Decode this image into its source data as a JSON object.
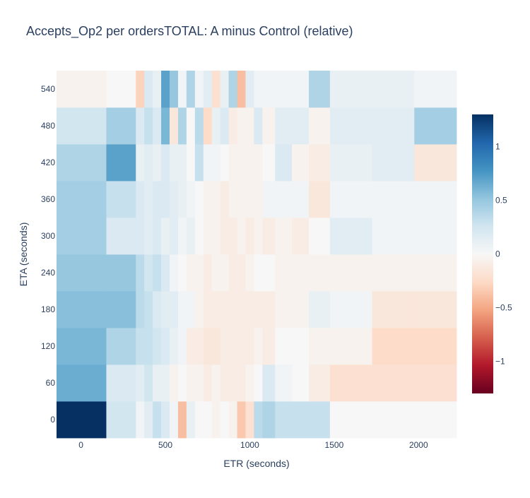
{
  "chart_data": {
    "type": "heatmap",
    "title": "Accepts_Op2 per ordersTOTAL: A minus Control (relative)",
    "xlabel": "ETR (seconds)",
    "ylabel": "ETA (seconds)",
    "x_ticks": [
      0,
      500,
      1000,
      1500,
      2000
    ],
    "y_ticks": [
      0,
      60,
      120,
      180,
      240,
      300,
      360,
      420,
      480,
      540
    ],
    "x_edges": [
      -145,
      150,
      325,
      375,
      425,
      475,
      525,
      575,
      625,
      675,
      725,
      775,
      825,
      875,
      925,
      975,
      1025,
      1075,
      1150,
      1250,
      1350,
      1475,
      1725,
      1975,
      2225
    ],
    "y_edges": [
      -30,
      30,
      90,
      150,
      210,
      270,
      330,
      390,
      450,
      510,
      570
    ],
    "z": [
      [
        1.3,
        0.25,
        0.05,
        0.15,
        0.3,
        0.2,
        0.05,
        -0.4,
        0.1,
        0.0,
        0.0,
        -0.05,
        0.0,
        -0.05,
        -0.35,
        -0.2,
        0.35,
        0.4,
        0.3,
        0.3,
        0.3,
        0.0,
        0.0,
        0.0
      ],
      [
        0.65,
        0.2,
        0.15,
        0.25,
        0.1,
        0.1,
        -0.05,
        0.0,
        -0.05,
        -0.05,
        -0.1,
        -0.05,
        -0.1,
        -0.1,
        -0.1,
        -0.05,
        0.0,
        0.2,
        0.05,
        0.0,
        -0.1,
        -0.2,
        -0.2,
        -0.2
      ],
      [
        0.6,
        0.4,
        0.3,
        0.3,
        0.25,
        0.2,
        0.1,
        0.05,
        -0.1,
        -0.1,
        -0.15,
        -0.15,
        -0.1,
        -0.1,
        -0.1,
        -0.1,
        -0.05,
        -0.1,
        0.0,
        0.0,
        -0.05,
        -0.05,
        -0.25,
        -0.25
      ],
      [
        0.55,
        0.55,
        0.35,
        0.3,
        0.2,
        0.15,
        0.15,
        0.05,
        0.05,
        -0.05,
        -0.1,
        -0.1,
        -0.1,
        -0.1,
        -0.1,
        -0.1,
        -0.1,
        -0.1,
        -0.05,
        -0.05,
        0.1,
        0.05,
        -0.15,
        -0.15
      ],
      [
        0.5,
        0.5,
        0.35,
        0.25,
        0.3,
        0.2,
        0.05,
        0.0,
        -0.05,
        -0.05,
        -0.1,
        -0.05,
        -0.05,
        -0.1,
        -0.1,
        -0.05,
        0.0,
        0.0,
        -0.05,
        -0.05,
        -0.05,
        -0.05,
        -0.05,
        -0.05
      ],
      [
        0.45,
        0.2,
        0.2,
        0.15,
        0.2,
        0.1,
        0.15,
        0.05,
        0.1,
        0.0,
        -0.05,
        -0.05,
        -0.1,
        -0.1,
        -0.05,
        -0.1,
        -0.05,
        -0.1,
        -0.05,
        -0.1,
        0.0,
        0.15,
        0.05,
        0.05
      ],
      [
        0.45,
        0.3,
        0.2,
        0.15,
        0.2,
        0.2,
        0.15,
        0.1,
        0.05,
        0.0,
        -0.05,
        -0.05,
        -0.1,
        -0.05,
        -0.05,
        -0.05,
        -0.05,
        0.05,
        0.05,
        0.05,
        -0.15,
        0.05,
        0.05,
        0.05
      ],
      [
        0.4,
        0.7,
        0.1,
        0.15,
        0.1,
        0.2,
        0.1,
        0.1,
        0.0,
        0.3,
        0.05,
        0.05,
        0.0,
        -0.05,
        -0.05,
        -0.05,
        -0.05,
        0.0,
        0.2,
        -0.05,
        -0.1,
        0.1,
        0.15,
        -0.15
      ],
      [
        0.25,
        0.45,
        0.2,
        0.3,
        0.2,
        0.6,
        -0.15,
        0.4,
        0.0,
        0.35,
        -0.25,
        0.1,
        0.2,
        -0.1,
        -0.05,
        -0.05,
        0.2,
        -0.05,
        0.15,
        0.15,
        -0.05,
        0.15,
        0.15,
        0.45
      ],
      [
        -0.05,
        0.0,
        -0.3,
        0.2,
        0.1,
        0.7,
        0.5,
        0.05,
        0.4,
        0.05,
        0.15,
        -0.2,
        0.1,
        0.4,
        -0.4,
        0.15,
        0.05,
        0.05,
        0.05,
        0.05,
        0.4,
        0.1,
        0.1,
        0.05
      ]
    ],
    "zmin": -1.3,
    "zmax": 1.3,
    "colorscale": "RdBu",
    "colorbar_ticks": [
      1,
      0.5,
      0,
      -0.5,
      -1
    ],
    "colorbar_tick_labels": [
      "1",
      "0.5",
      "0",
      "−0.5",
      "−1"
    ],
    "grid": false,
    "colors": {
      "text": "#2a3f5f",
      "background": "#ffffff"
    }
  }
}
